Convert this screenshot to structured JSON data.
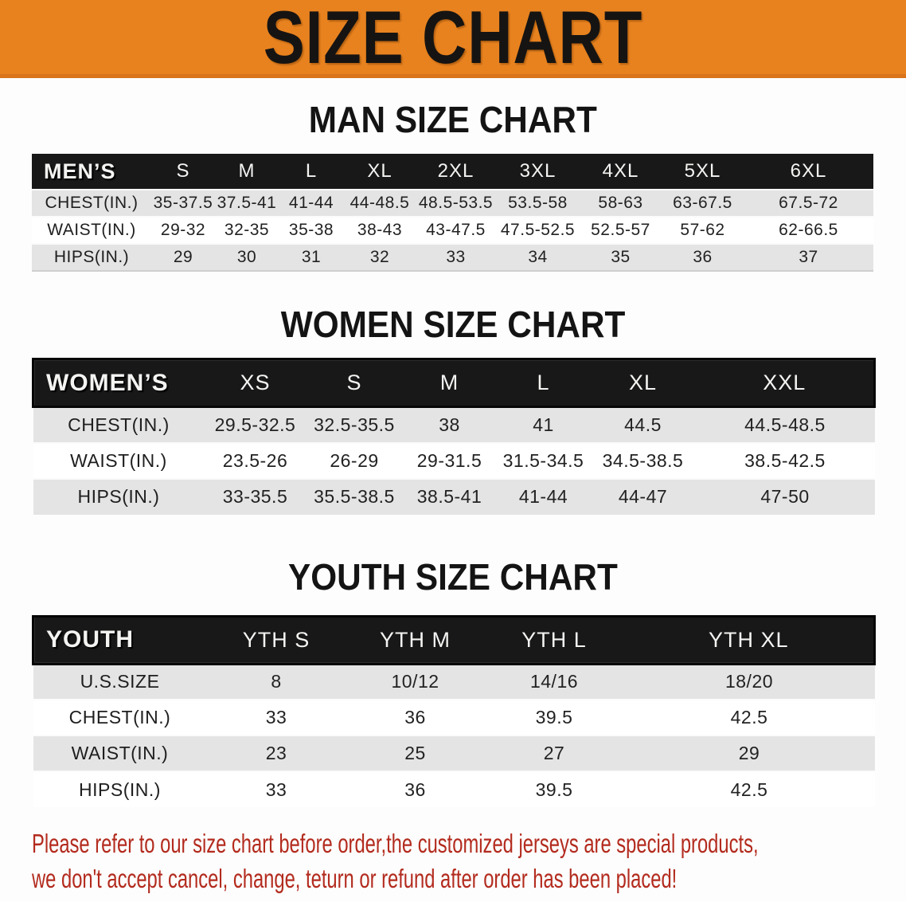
{
  "banner": {
    "title": "SIZE CHART",
    "bg_color": "#E8821F",
    "text_color": "#161412"
  },
  "colors": {
    "table_header_bg": "#181818",
    "row_shade": "#E4E4E4",
    "footer_text": "#B32B1E"
  },
  "sections": [
    {
      "id": "men",
      "title": "MAN SIZE CHART",
      "header_label": "MEN’S",
      "columns": [
        "S",
        "M",
        "L",
        "XL",
        "2XL",
        "3XL",
        "4XL",
        "5XL",
        "6XL"
      ],
      "rows": [
        {
          "label": "CHEST(IN.)",
          "values": [
            "35-37.5",
            "37.5-41",
            "41-44",
            "44-48.5",
            "48.5-53.5",
            "53.5-58",
            "58-63",
            "63-67.5",
            "67.5-72"
          ]
        },
        {
          "label": "WAIST(IN.)",
          "values": [
            "29-32",
            "32-35",
            "35-38",
            "38-43",
            "43-47.5",
            "47.5-52.5",
            "52.5-57",
            "57-62",
            "62-66.5"
          ]
        },
        {
          "label": "HIPS(IN.)",
          "values": [
            "29",
            "30",
            "31",
            "32",
            "33",
            "34",
            "35",
            "36",
            "37"
          ]
        }
      ]
    },
    {
      "id": "women",
      "title": "WOMEN SIZE CHART",
      "header_label": "WOMEN’S",
      "columns": [
        "XS",
        "S",
        "M",
        "L",
        "XL",
        "XXL"
      ],
      "rows": [
        {
          "label": "CHEST(IN.)",
          "values": [
            "29.5-32.5",
            "32.5-35.5",
            "38",
            "41",
            "44.5",
            "44.5-48.5"
          ]
        },
        {
          "label": "WAIST(IN.)",
          "values": [
            "23.5-26",
            "26-29",
            "29-31.5",
            "31.5-34.5",
            "34.5-38.5",
            "38.5-42.5"
          ]
        },
        {
          "label": "HIPS(IN.)",
          "values": [
            "33-35.5",
            "35.5-38.5",
            "38.5-41",
            "41-44",
            "44-47",
            "47-50"
          ]
        }
      ]
    },
    {
      "id": "youth",
      "title": "YOUTH SIZE CHART",
      "header_label": "YOUTH",
      "columns": [
        "YTH S",
        "YTH M",
        "YTH L",
        "YTH XL"
      ],
      "rows": [
        {
          "label": "U.S.SIZE",
          "values": [
            "8",
            "10/12",
            "14/16",
            "18/20"
          ]
        },
        {
          "label": "CHEST(IN.)",
          "values": [
            "33",
            "36",
            "39.5",
            "42.5"
          ]
        },
        {
          "label": "WAIST(IN.)",
          "values": [
            "23",
            "25",
            "27",
            "29"
          ]
        },
        {
          "label": "HIPS(IN.)",
          "values": [
            "33",
            "36",
            "39.5",
            "42.5"
          ]
        }
      ]
    }
  ],
  "footer": {
    "line1": "Please refer to our size chart before order,the customized jerseys are special products,",
    "line2": "we don't accept cancel, change, teturn or refund after order has been placed!"
  }
}
